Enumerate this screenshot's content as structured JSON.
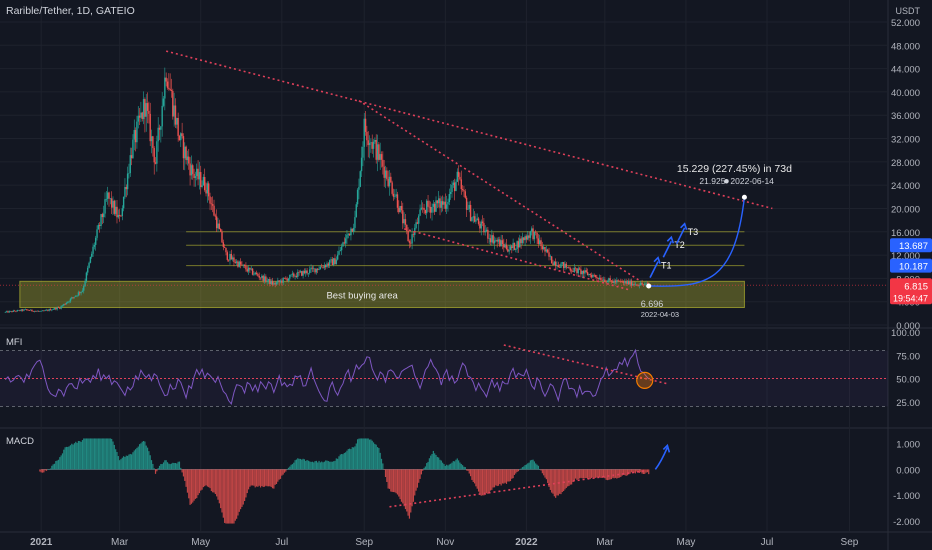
{
  "header": {
    "title": "Rarible/Tether, 1D, GATEIO"
  },
  "colors": {
    "background": "#131722",
    "grid": "#1e222d",
    "up": "#26a69a",
    "down": "#ef5350",
    "trend": "#e0405a",
    "zone": "#c8c832",
    "level": "#c8c832",
    "projection": "#2962ff",
    "mfi": "#7e57c2",
    "text": "#d1d4dc",
    "price_badge": "#f23645",
    "level_badge": "#2962ff"
  },
  "chart_data": [
    {
      "type": "candlestick",
      "pane": "price",
      "y_unit": "USDT",
      "x_ticks": [
        "2021",
        "Mar",
        "May",
        "Jul",
        "Sep",
        "Nov",
        "2022",
        "Mar",
        "May",
        "Jul",
        "Sep"
      ],
      "y_ticks": [
        0.0,
        4.0,
        8.0,
        12.0,
        16.0,
        20.0,
        24.0,
        28.0,
        32.0,
        36.0,
        40.0,
        44.0,
        48.0,
        52.0
      ],
      "ylim": [
        0,
        52
      ],
      "x_domain": [
        "2020-12-01",
        "2022-09-30"
      ],
      "price_path": [
        [
          "2020-12-05",
          2.2
        ],
        [
          "2020-12-20",
          2.6
        ],
        [
          "2021-01-01",
          2.3
        ],
        [
          "2021-01-15",
          3.0
        ],
        [
          "2021-02-01",
          6.0
        ],
        [
          "2021-02-10",
          14.0
        ],
        [
          "2021-02-20",
          22.0
        ],
        [
          "2021-03-01",
          18.0
        ],
        [
          "2021-03-10",
          30.0
        ],
        [
          "2021-03-20",
          38.0
        ],
        [
          "2021-03-28",
          28.0
        ],
        [
          "2021-04-05",
          44.0
        ],
        [
          "2021-04-15",
          32.0
        ],
        [
          "2021-04-25",
          26.0
        ],
        [
          "2021-05-05",
          24.0
        ],
        [
          "2021-05-20",
          12.0
        ],
        [
          "2021-06-05",
          9.5
        ],
        [
          "2021-06-25",
          7.0
        ],
        [
          "2021-07-10",
          8.5
        ],
        [
          "2021-07-25",
          9.5
        ],
        [
          "2021-08-10",
          11.0
        ],
        [
          "2021-08-25",
          18.0
        ],
        [
          "2021-09-01",
          34.0
        ],
        [
          "2021-09-10",
          30.0
        ],
        [
          "2021-09-25",
          22.0
        ],
        [
          "2021-10-05",
          14.0
        ],
        [
          "2021-10-15",
          20.0
        ],
        [
          "2021-11-01",
          21.0
        ],
        [
          "2021-11-10",
          25.0
        ],
        [
          "2021-11-20",
          19.0
        ],
        [
          "2021-12-05",
          15.0
        ],
        [
          "2021-12-20",
          13.0
        ],
        [
          "2022-01-05",
          16.0
        ],
        [
          "2022-01-20",
          11.0
        ],
        [
          "2022-02-05",
          9.5
        ],
        [
          "2022-02-20",
          8.5
        ],
        [
          "2022-03-05",
          7.5
        ],
        [
          "2022-03-20",
          7.2
        ],
        [
          "2022-04-03",
          6.815
        ]
      ],
      "current_price": "6.815",
      "countdown": "19:54:47",
      "levels": [
        {
          "value": 16.0
        },
        {
          "value": 13.687,
          "label": "13.687"
        },
        {
          "value": 10.187,
          "label": "10.187"
        }
      ],
      "zone": {
        "label": "Best buying area",
        "low": 3.0,
        "high": 7.5,
        "start": "2021-01-15",
        "end": "2022-06-14"
      },
      "trendlines": [
        {
          "from": [
            "2021-04-05",
            47.0
          ],
          "to": [
            "2022-07-05",
            20.0
          ]
        },
        {
          "from": [
            "2021-08-28",
            38.5
          ],
          "to": [
            "2022-03-28",
            7.5
          ]
        },
        {
          "from": [
            "2021-10-01",
            16.5
          ],
          "to": [
            "2022-03-20",
            6.0
          ]
        }
      ],
      "targets": [
        {
          "label": "T1",
          "date": "2022-04-10",
          "value": 10.187
        },
        {
          "label": "T2",
          "date": "2022-04-20",
          "value": 13.687
        },
        {
          "label": "T3",
          "date": "2022-04-30",
          "value": 16.0
        }
      ],
      "projection": {
        "start": {
          "date": "2022-04-03",
          "value": 6.696,
          "label": "6.696",
          "date_label": "2022-04-03"
        },
        "end": {
          "date": "2022-06-14",
          "value": 21.925,
          "label": "21.925",
          "date_label": "2022-06-14"
        },
        "summary": "15.229 (227.45%) in 73d"
      }
    },
    {
      "type": "line",
      "pane": "MFI",
      "name": "MFI",
      "y_ticks": [
        25.0,
        50.0,
        75.0,
        100.0
      ],
      "ylim": [
        0,
        100
      ],
      "bands": [
        20,
        50,
        80
      ],
      "trendline": {
        "from": [
          "2021-12-15",
          86.0
        ],
        "to": [
          "2022-04-18",
          44.0
        ]
      }
    },
    {
      "type": "histogram",
      "pane": "MACD",
      "name": "MACD",
      "y_ticks": [
        1.0,
        0.0,
        -1.0,
        -2.0
      ],
      "ylim": [
        -2.35,
        1.45
      ],
      "trendline": {
        "from": [
          "2021-09-20",
          -1.45
        ],
        "to": [
          "2022-04-01",
          -0.05
        ]
      }
    }
  ]
}
